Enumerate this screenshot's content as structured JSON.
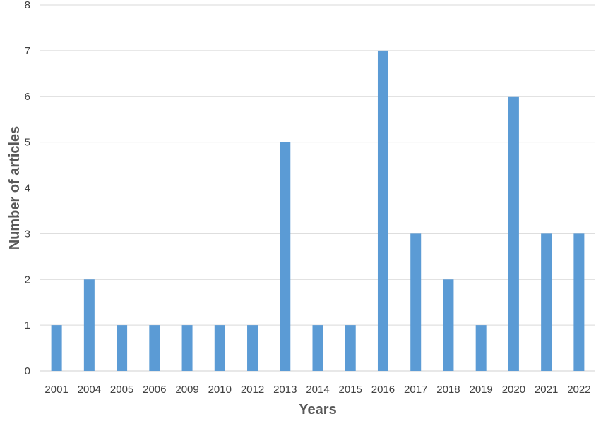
{
  "chart_data": {
    "type": "bar",
    "title": "",
    "xlabel": "Years",
    "ylabel": "Number of articles",
    "categories": [
      "2001",
      "2004",
      "2005",
      "2006",
      "2009",
      "2010",
      "2012",
      "2013",
      "2014",
      "2015",
      "2016",
      "2017",
      "2018",
      "2019",
      "2020",
      "2021",
      "2022"
    ],
    "values": [
      1,
      2,
      1,
      1,
      1,
      1,
      1,
      5,
      1,
      1,
      7,
      3,
      2,
      1,
      6,
      3,
      3
    ],
    "ylim": [
      0,
      8
    ],
    "yticks": [
      0,
      1,
      2,
      3,
      4,
      5,
      6,
      7,
      8
    ],
    "grid": true,
    "legend": "none",
    "bar_color": "#5b9bd5"
  }
}
